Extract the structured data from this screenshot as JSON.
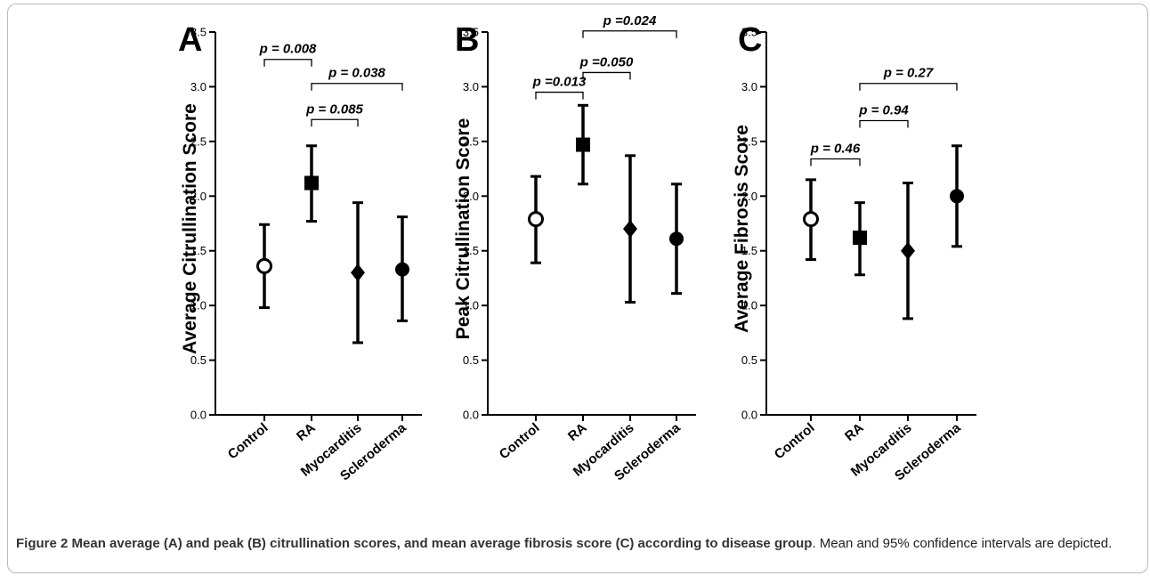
{
  "chart_data": [
    {
      "panel": "A",
      "type": "scatter",
      "ylabel": "Average Citrullination Score",
      "ylim": [
        0,
        3.5
      ],
      "yticks": [
        "0.0",
        "0.5",
        "1.0",
        "1.5",
        "2.0",
        "2.5",
        "3.0",
        "3.5"
      ],
      "categories": [
        "Control",
        "RA",
        "Myocarditis",
        "Scleroderma"
      ],
      "markers": [
        "open-circle",
        "filled-square",
        "filled-diamond",
        "filled-circle"
      ],
      "mean": [
        1.36,
        2.12,
        1.3,
        1.33
      ],
      "ci_low": [
        0.98,
        1.77,
        0.66,
        0.86
      ],
      "ci_high": [
        1.74,
        2.46,
        1.94,
        1.81
      ],
      "comparisons": [
        {
          "from": 0,
          "to": 1,
          "y": 3.25,
          "label": "p = 0.008"
        },
        {
          "from": 1,
          "to": 2,
          "y": 2.7,
          "label": "p = 0.085"
        },
        {
          "from": 1,
          "to": 3,
          "y": 3.03,
          "label": "p = 0.038"
        }
      ]
    },
    {
      "panel": "B",
      "type": "scatter",
      "ylabel": "Peak Citrullination Score",
      "ylim": [
        0,
        3.5
      ],
      "yticks": [
        "0.0",
        "0.5",
        "1.0",
        "1.5",
        "2.0",
        "2.5",
        "3.0",
        "3.5"
      ],
      "categories": [
        "Control",
        "RA",
        "Myocarditis",
        "Scleroderma"
      ],
      "markers": [
        "open-circle",
        "filled-square",
        "filled-diamond",
        "filled-circle"
      ],
      "mean": [
        1.79,
        2.47,
        1.7,
        1.61
      ],
      "ci_low": [
        1.39,
        2.11,
        1.03,
        1.11
      ],
      "ci_high": [
        2.18,
        2.83,
        2.37,
        2.11
      ],
      "comparisons": [
        {
          "from": 0,
          "to": 1,
          "y": 2.95,
          "label": "p =0.013"
        },
        {
          "from": 1,
          "to": 2,
          "y": 3.13,
          "label": "p =0.050"
        },
        {
          "from": 1,
          "to": 3,
          "y": 3.51,
          "label": "p =0.024"
        }
      ]
    },
    {
      "panel": "C",
      "type": "scatter",
      "ylabel": "Average Fibrosis Score",
      "ylim": [
        0,
        3.5
      ],
      "yticks": [
        "0.0",
        "0.5",
        "1.0",
        "1.5",
        "2.0",
        "2.5",
        "3.0",
        "3.5"
      ],
      "categories": [
        "Control",
        "RA",
        "Myocarditis",
        "Scleroderma"
      ],
      "markers": [
        "open-circle",
        "filled-square",
        "filled-diamond",
        "filled-circle"
      ],
      "mean": [
        1.79,
        1.62,
        1.5,
        2.0
      ],
      "ci_low": [
        1.42,
        1.28,
        0.88,
        1.54
      ],
      "ci_high": [
        2.15,
        1.94,
        2.12,
        2.46
      ],
      "comparisons": [
        {
          "from": 0,
          "to": 1,
          "y": 2.34,
          "label": "p = 0.46"
        },
        {
          "from": 1,
          "to": 2,
          "y": 2.69,
          "label": "p = 0.94"
        },
        {
          "from": 1,
          "to": 3,
          "y": 3.03,
          "label": "p = 0.27"
        }
      ]
    }
  ],
  "caption": {
    "label": "Figure 2",
    "title": "Mean average (A) and peak (B) citrullination scores, and mean average fibrosis score (C) according to disease group",
    "text": ". Mean and 95% confidence intervals are depicted."
  },
  "colors": {
    "ink": "#000000",
    "frame": "#b9b9b9",
    "caption": "#222222"
  }
}
